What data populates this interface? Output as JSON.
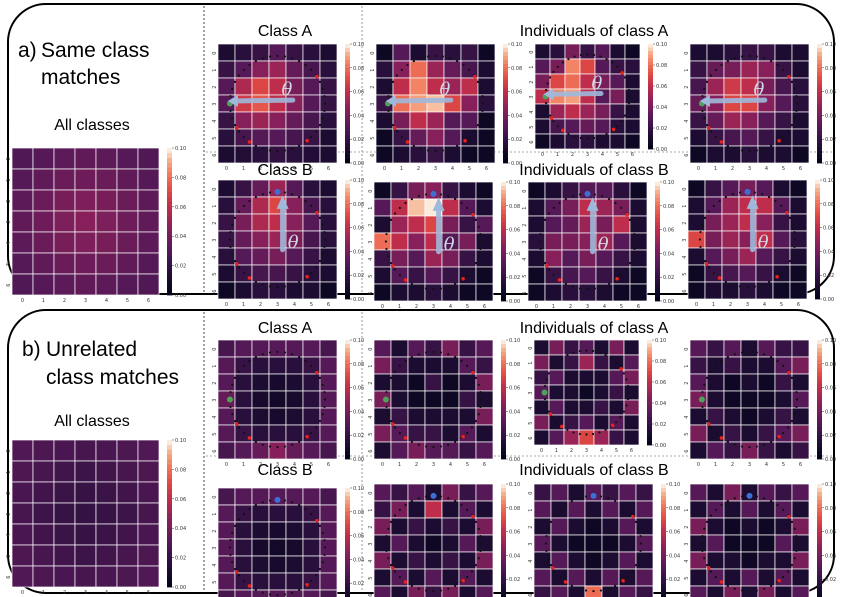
{
  "panels": [
    {
      "label": "a)",
      "title_lines": [
        "Same class",
        "matches"
      ],
      "all_classes_label": "All classes",
      "rows": [
        {
          "class_label": "Class A",
          "individuals_label": "Individuals of class A"
        },
        {
          "class_label": "Class B",
          "individuals_label": "Individuals of class B"
        }
      ]
    },
    {
      "label": "b)",
      "title_lines": [
        "Unrelated",
        "class matches"
      ],
      "all_classes_label": "All classes",
      "rows": [
        {
          "class_label": "Class A",
          "individuals_label": "Individuals of class A"
        },
        {
          "class_label": "Class B",
          "individuals_label": "Individuals of class B"
        }
      ]
    }
  ],
  "theta_symbol": "θ",
  "axis_ticks": [
    "0",
    "1",
    "2",
    "3",
    "4",
    "5",
    "6"
  ],
  "colorbar": {
    "ticks": [
      "0.10",
      "0.08",
      "0.06",
      "0.04",
      "0.02",
      "0.00"
    ],
    "range": [
      0,
      0.1
    ],
    "colormap": "rocket"
  },
  "colors": {
    "ring_dot": "#111111",
    "red_marker": "#e8231a",
    "green_marker": "#4fa05a",
    "blue_marker": "#3b6fd6",
    "arrow": "#9fb9dc"
  },
  "chart_data": [
    {
      "type": "heatmap",
      "id": "a-all",
      "values": [
        [
          0.028,
          0.03,
          0.032,
          0.033,
          0.032,
          0.03,
          0.028
        ],
        [
          0.03,
          0.033,
          0.036,
          0.037,
          0.036,
          0.033,
          0.03
        ],
        [
          0.032,
          0.036,
          0.04,
          0.042,
          0.04,
          0.036,
          0.032
        ],
        [
          0.033,
          0.037,
          0.042,
          0.045,
          0.042,
          0.037,
          0.033
        ],
        [
          0.032,
          0.036,
          0.04,
          0.042,
          0.04,
          0.036,
          0.032
        ],
        [
          0.03,
          0.033,
          0.036,
          0.037,
          0.036,
          0.033,
          0.03
        ],
        [
          0.028,
          0.03,
          0.032,
          0.033,
          0.032,
          0.03,
          0.028
        ]
      ]
    },
    {
      "type": "heatmap",
      "id": "a-A-class",
      "values": [
        [
          0.01,
          0.015,
          0.02,
          0.03,
          0.02,
          0.015,
          0.01
        ],
        [
          0.02,
          0.03,
          0.045,
          0.05,
          0.035,
          0.025,
          0.015
        ],
        [
          0.03,
          0.055,
          0.07,
          0.06,
          0.04,
          0.03,
          0.02
        ],
        [
          0.03,
          0.065,
          0.075,
          0.06,
          0.045,
          0.03,
          0.02
        ],
        [
          0.02,
          0.045,
          0.05,
          0.045,
          0.035,
          0.025,
          0.015
        ],
        [
          0.015,
          0.025,
          0.03,
          0.03,
          0.025,
          0.02,
          0.01
        ],
        [
          0.01,
          0.012,
          0.015,
          0.018,
          0.015,
          0.012,
          0.01
        ]
      ]
    },
    {
      "type": "heatmap",
      "id": "a-A-ind1",
      "values": [
        [
          0.005,
          0.03,
          0.01,
          0.02,
          0.015,
          0.02,
          0.005
        ],
        [
          0.015,
          0.045,
          0.08,
          0.05,
          0.035,
          0.025,
          0.01
        ],
        [
          0.01,
          0.06,
          0.085,
          0.06,
          0.05,
          0.06,
          0.01
        ],
        [
          0.02,
          0.08,
          0.09,
          0.095,
          0.07,
          0.045,
          0.015
        ],
        [
          0.01,
          0.04,
          0.06,
          0.05,
          0.03,
          0.03,
          0.005
        ],
        [
          0.005,
          0.02,
          0.035,
          0.045,
          0.03,
          0.01,
          0.005
        ],
        [
          0.005,
          0.01,
          0.015,
          0.02,
          0.01,
          0.005,
          0.005
        ]
      ]
    },
    {
      "type": "heatmap",
      "id": "a-A-ind2",
      "values": [
        [
          0.01,
          0.015,
          0.04,
          0.02,
          0.03,
          0.01,
          0.005
        ],
        [
          0.03,
          0.04,
          0.085,
          0.07,
          0.03,
          0.02,
          0.015
        ],
        [
          0.04,
          0.07,
          0.08,
          0.06,
          0.04,
          0.03,
          0.01
        ],
        [
          0.06,
          0.085,
          0.09,
          0.06,
          0.03,
          0.04,
          0.01
        ],
        [
          0.01,
          0.05,
          0.06,
          0.05,
          0.04,
          0.02,
          0.01
        ],
        [
          0.01,
          0.025,
          0.03,
          0.035,
          0.03,
          0.015,
          0.01
        ],
        [
          0.005,
          0.01,
          0.015,
          0.015,
          0.01,
          0.01,
          0.005
        ]
      ]
    },
    {
      "type": "heatmap",
      "id": "a-A-ind3",
      "values": [
        [
          0.01,
          0.01,
          0.015,
          0.02,
          0.02,
          0.01,
          0.01
        ],
        [
          0.02,
          0.035,
          0.04,
          0.05,
          0.045,
          0.02,
          0.01
        ],
        [
          0.025,
          0.05,
          0.065,
          0.06,
          0.04,
          0.025,
          0.015
        ],
        [
          0.035,
          0.045,
          0.07,
          0.07,
          0.045,
          0.03,
          0.015
        ],
        [
          0.02,
          0.035,
          0.05,
          0.045,
          0.03,
          0.02,
          0.01
        ],
        [
          0.01,
          0.02,
          0.025,
          0.03,
          0.02,
          0.01,
          0.01
        ],
        [
          0.005,
          0.01,
          0.01,
          0.015,
          0.01,
          0.01,
          0.005
        ]
      ]
    },
    {
      "type": "heatmap",
      "id": "a-B-class",
      "values": [
        [
          0.01,
          0.02,
          0.035,
          0.05,
          0.03,
          0.015,
          0.01
        ],
        [
          0.015,
          0.035,
          0.055,
          0.07,
          0.045,
          0.025,
          0.015
        ],
        [
          0.02,
          0.04,
          0.055,
          0.06,
          0.045,
          0.03,
          0.015
        ],
        [
          0.02,
          0.035,
          0.045,
          0.05,
          0.04,
          0.025,
          0.015
        ],
        [
          0.015,
          0.03,
          0.035,
          0.04,
          0.03,
          0.02,
          0.01
        ],
        [
          0.01,
          0.02,
          0.025,
          0.025,
          0.02,
          0.015,
          0.01
        ],
        [
          0.005,
          0.01,
          0.015,
          0.015,
          0.01,
          0.01,
          0.005
        ]
      ]
    },
    {
      "type": "heatmap",
      "id": "a-B-ind1",
      "values": [
        [
          0.005,
          0.02,
          0.04,
          0.045,
          0.02,
          0.01,
          0.005
        ],
        [
          0.03,
          0.06,
          0.095,
          0.1,
          0.06,
          0.03,
          0.01
        ],
        [
          0.01,
          0.05,
          0.06,
          0.07,
          0.04,
          0.02,
          0.03
        ],
        [
          0.08,
          0.06,
          0.045,
          0.06,
          0.03,
          0.04,
          0.01
        ],
        [
          0.02,
          0.04,
          0.03,
          0.05,
          0.04,
          0.02,
          0.01
        ],
        [
          0.01,
          0.03,
          0.02,
          0.03,
          0.02,
          0.01,
          0.005
        ],
        [
          0.005,
          0.01,
          0.01,
          0.015,
          0.01,
          0.005,
          0.005
        ]
      ]
    },
    {
      "type": "heatmap",
      "id": "a-B-ind2",
      "values": [
        [
          0.005,
          0.01,
          0.02,
          0.03,
          0.03,
          0.015,
          0.005
        ],
        [
          0.01,
          0.03,
          0.04,
          0.06,
          0.05,
          0.04,
          0.01
        ],
        [
          0.01,
          0.03,
          0.035,
          0.05,
          0.04,
          0.06,
          0.01
        ],
        [
          0.015,
          0.04,
          0.04,
          0.045,
          0.05,
          0.03,
          0.01
        ],
        [
          0.01,
          0.045,
          0.03,
          0.04,
          0.03,
          0.02,
          0.01
        ],
        [
          0.005,
          0.02,
          0.025,
          0.03,
          0.02,
          0.01,
          0.005
        ],
        [
          0.005,
          0.01,
          0.015,
          0.015,
          0.01,
          0.005,
          0.005
        ]
      ]
    },
    {
      "type": "heatmap",
      "id": "a-B-ind3",
      "values": [
        [
          0.005,
          0.02,
          0.03,
          0.04,
          0.03,
          0.01,
          0.005
        ],
        [
          0.01,
          0.03,
          0.05,
          0.06,
          0.06,
          0.03,
          0.01
        ],
        [
          0.01,
          0.04,
          0.05,
          0.06,
          0.045,
          0.02,
          0.01
        ],
        [
          0.07,
          0.04,
          0.05,
          0.045,
          0.06,
          0.03,
          0.015
        ],
        [
          0.01,
          0.03,
          0.04,
          0.05,
          0.03,
          0.02,
          0.01
        ],
        [
          0.005,
          0.02,
          0.025,
          0.03,
          0.02,
          0.01,
          0.005
        ],
        [
          0.005,
          0.01,
          0.01,
          0.015,
          0.01,
          0.005,
          0.005
        ]
      ]
    },
    {
      "type": "heatmap",
      "id": "b-all",
      "values": [
        [
          0.028,
          0.027,
          0.026,
          0.025,
          0.026,
          0.027,
          0.028
        ],
        [
          0.027,
          0.025,
          0.023,
          0.022,
          0.023,
          0.025,
          0.027
        ],
        [
          0.026,
          0.023,
          0.021,
          0.02,
          0.021,
          0.023,
          0.026
        ],
        [
          0.025,
          0.022,
          0.02,
          0.019,
          0.02,
          0.022,
          0.025
        ],
        [
          0.026,
          0.023,
          0.021,
          0.02,
          0.021,
          0.023,
          0.026
        ],
        [
          0.027,
          0.025,
          0.023,
          0.022,
          0.023,
          0.025,
          0.027
        ],
        [
          0.028,
          0.027,
          0.026,
          0.025,
          0.026,
          0.027,
          0.028
        ]
      ]
    },
    {
      "type": "heatmap",
      "id": "b-A-class",
      "values": [
        [
          0.025,
          0.03,
          0.03,
          0.03,
          0.03,
          0.03,
          0.025
        ],
        [
          0.03,
          0.02,
          0.015,
          0.015,
          0.015,
          0.02,
          0.03
        ],
        [
          0.03,
          0.015,
          0.01,
          0.008,
          0.01,
          0.015,
          0.03
        ],
        [
          0.035,
          0.015,
          0.008,
          0.006,
          0.008,
          0.015,
          0.03
        ],
        [
          0.03,
          0.015,
          0.01,
          0.008,
          0.01,
          0.015,
          0.03
        ],
        [
          0.03,
          0.02,
          0.015,
          0.015,
          0.015,
          0.02,
          0.03
        ],
        [
          0.025,
          0.03,
          0.035,
          0.045,
          0.035,
          0.03,
          0.025
        ]
      ]
    },
    {
      "type": "heatmap",
      "id": "b-A-ind1",
      "values": [
        [
          0.03,
          0.01,
          0.03,
          0.02,
          0.04,
          0.02,
          0.03
        ],
        [
          0.04,
          0.02,
          0.01,
          0.01,
          0.01,
          0.03,
          0.02
        ],
        [
          0.01,
          0.01,
          0.005,
          0.02,
          0.005,
          0.01,
          0.04
        ],
        [
          0.04,
          0.01,
          0.005,
          0.005,
          0.005,
          0.02,
          0.01
        ],
        [
          0.01,
          0.02,
          0.01,
          0.01,
          0.01,
          0.01,
          0.04
        ],
        [
          0.04,
          0.03,
          0.02,
          0.02,
          0.01,
          0.03,
          0.01
        ],
        [
          0.01,
          0.03,
          0.04,
          0.03,
          0.03,
          0.02,
          0.03
        ]
      ]
    },
    {
      "type": "heatmap",
      "id": "b-A-ind2",
      "values": [
        [
          0.01,
          0.04,
          0.02,
          0.03,
          0.01,
          0.04,
          0.01
        ],
        [
          0.04,
          0.01,
          0.02,
          0.05,
          0.02,
          0.01,
          0.03
        ],
        [
          0.02,
          0.03,
          0.01,
          0.01,
          0.01,
          0.03,
          0.04
        ],
        [
          0.03,
          0.01,
          0.01,
          0.005,
          0.01,
          0.02,
          0.01
        ],
        [
          0.01,
          0.03,
          0.01,
          0.01,
          0.02,
          0.01,
          0.04
        ],
        [
          0.04,
          0.01,
          0.02,
          0.03,
          0.01,
          0.03,
          0.01
        ],
        [
          0.01,
          0.03,
          0.05,
          0.07,
          0.05,
          0.02,
          0.01
        ]
      ]
    },
    {
      "type": "heatmap",
      "id": "b-A-ind3",
      "values": [
        [
          0.03,
          0.02,
          0.03,
          0.01,
          0.03,
          0.02,
          0.02
        ],
        [
          0.02,
          0.01,
          0.02,
          0.01,
          0.01,
          0.03,
          0.04
        ],
        [
          0.03,
          0.01,
          0.005,
          0.01,
          0.005,
          0.02,
          0.01
        ],
        [
          0.04,
          0.01,
          0.005,
          0.005,
          0.005,
          0.01,
          0.03
        ],
        [
          0.01,
          0.02,
          0.01,
          0.005,
          0.01,
          0.02,
          0.01
        ],
        [
          0.04,
          0.01,
          0.02,
          0.01,
          0.02,
          0.03,
          0.04
        ],
        [
          0.01,
          0.03,
          0.02,
          0.04,
          0.02,
          0.01,
          0.02
        ]
      ]
    },
    {
      "type": "heatmap",
      "id": "b-B-class",
      "values": [
        [
          0.025,
          0.03,
          0.03,
          0.03,
          0.03,
          0.03,
          0.025
        ],
        [
          0.03,
          0.02,
          0.015,
          0.015,
          0.015,
          0.02,
          0.03
        ],
        [
          0.03,
          0.015,
          0.01,
          0.008,
          0.01,
          0.015,
          0.03
        ],
        [
          0.03,
          0.015,
          0.008,
          0.006,
          0.008,
          0.015,
          0.03
        ],
        [
          0.03,
          0.015,
          0.01,
          0.008,
          0.01,
          0.015,
          0.03
        ],
        [
          0.03,
          0.02,
          0.015,
          0.015,
          0.015,
          0.02,
          0.03
        ],
        [
          0.025,
          0.03,
          0.03,
          0.03,
          0.03,
          0.03,
          0.025
        ]
      ]
    },
    {
      "type": "heatmap",
      "id": "b-B-ind1",
      "values": [
        [
          0.03,
          0.02,
          0.03,
          0.01,
          0.04,
          0.02,
          0.03
        ],
        [
          0.02,
          0.04,
          0.01,
          0.06,
          0.01,
          0.03,
          0.01
        ],
        [
          0.04,
          0.01,
          0.02,
          0.01,
          0.02,
          0.01,
          0.04
        ],
        [
          0.01,
          0.03,
          0.01,
          0.005,
          0.01,
          0.03,
          0.01
        ],
        [
          0.04,
          0.01,
          0.02,
          0.01,
          0.02,
          0.01,
          0.04
        ],
        [
          0.01,
          0.03,
          0.01,
          0.03,
          0.01,
          0.03,
          0.01
        ],
        [
          0.03,
          0.01,
          0.04,
          0.02,
          0.04,
          0.01,
          0.03
        ]
      ]
    },
    {
      "type": "heatmap",
      "id": "b-B-ind2",
      "values": [
        [
          0.02,
          0.03,
          0.01,
          0.03,
          0.02,
          0.03,
          0.02
        ],
        [
          0.03,
          0.01,
          0.03,
          0.01,
          0.03,
          0.01,
          0.03
        ],
        [
          0.01,
          0.03,
          0.01,
          0.005,
          0.01,
          0.03,
          0.01
        ],
        [
          0.03,
          0.01,
          0.005,
          0.005,
          0.005,
          0.01,
          0.03
        ],
        [
          0.01,
          0.03,
          0.01,
          0.005,
          0.01,
          0.03,
          0.01
        ],
        [
          0.03,
          0.01,
          0.03,
          0.01,
          0.03,
          0.01,
          0.03
        ],
        [
          0.02,
          0.03,
          0.01,
          0.08,
          0.01,
          0.03,
          0.02
        ]
      ]
    },
    {
      "type": "heatmap",
      "id": "b-B-ind3",
      "values": [
        [
          0.03,
          0.01,
          0.04,
          0.01,
          0.03,
          0.02,
          0.03
        ],
        [
          0.01,
          0.03,
          0.01,
          0.03,
          0.01,
          0.03,
          0.01
        ],
        [
          0.04,
          0.01,
          0.005,
          0.01,
          0.005,
          0.01,
          0.04
        ],
        [
          0.01,
          0.03,
          0.005,
          0.005,
          0.005,
          0.03,
          0.01
        ],
        [
          0.04,
          0.01,
          0.01,
          0.005,
          0.01,
          0.01,
          0.04
        ],
        [
          0.01,
          0.03,
          0.01,
          0.03,
          0.01,
          0.03,
          0.01
        ],
        [
          0.03,
          0.01,
          0.04,
          0.01,
          0.04,
          0.01,
          0.03
        ]
      ]
    }
  ]
}
